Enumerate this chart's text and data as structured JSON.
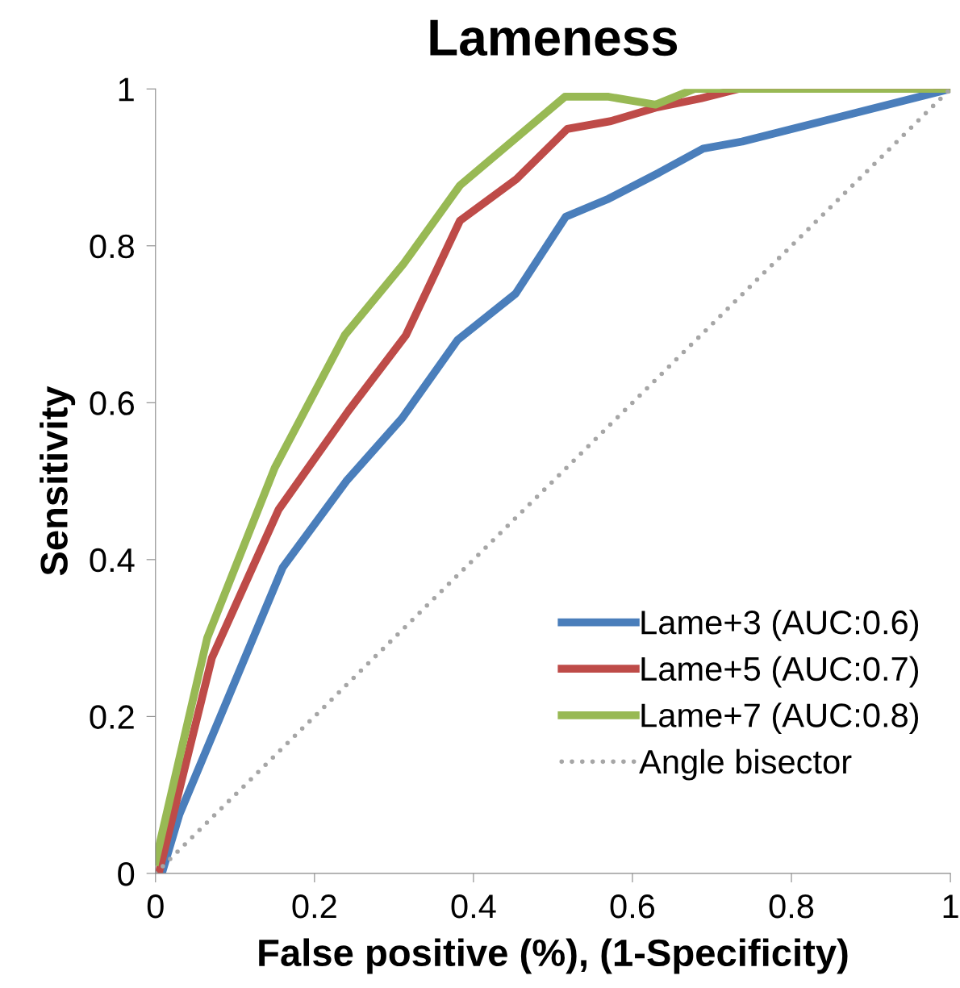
{
  "chart_data": {
    "type": "line",
    "title": "Lameness",
    "xlabel": "False positive (%), (1-Specificity)",
    "ylabel": "Sensitivity",
    "xlim": [
      0,
      1
    ],
    "ylim": [
      0,
      1
    ],
    "xticks": [
      0,
      0.2,
      0.4,
      0.6,
      0.8,
      1
    ],
    "yticks": [
      0,
      0.2,
      0.4,
      0.6,
      0.8,
      1
    ],
    "grid": false,
    "legend": "bottom right",
    "marker": "none",
    "series": [
      {
        "name": "Lame+3 (AUC:0.6)",
        "color": "#4a7ebb",
        "line_style": "solid",
        "x": [
          0.008,
          0.03,
          0.16,
          0.24,
          0.31,
          0.38,
          0.453,
          0.516,
          0.57,
          0.633,
          0.689,
          0.738,
          1
        ],
        "values": [
          0,
          0.075,
          0.39,
          0.5,
          0.58,
          0.68,
          0.739,
          0.837,
          0.86,
          0.893,
          0.924,
          0.933,
          1
        ]
      },
      {
        "name": "Lame+5 (AUC:0.7)",
        "color": "#be4b48",
        "line_style": "solid",
        "x": [
          0.004,
          0.071,
          0.155,
          0.243,
          0.315,
          0.383,
          0.454,
          0.518,
          0.573,
          0.629,
          0.686,
          0.733,
          1
        ],
        "values": [
          0,
          0.275,
          0.464,
          0.59,
          0.686,
          0.832,
          0.885,
          0.949,
          0.959,
          0.976,
          0.988,
          1,
          1
        ]
      },
      {
        "name": "Lame+7 (AUC:0.8)",
        "color": "#98b954",
        "line_style": "solid",
        "x": [
          0,
          0.065,
          0.15,
          0.238,
          0.312,
          0.383,
          0.515,
          0.57,
          0.629,
          0.678,
          1
        ],
        "values": [
          0.015,
          0.3,
          0.517,
          0.686,
          0.777,
          0.877,
          0.99,
          0.99,
          0.98,
          1,
          1
        ]
      },
      {
        "name": "Angle bisector",
        "color": "#a6a6a6",
        "line_style": "dotted",
        "x": [
          0,
          1
        ],
        "values": [
          0,
          1
        ]
      }
    ]
  }
}
